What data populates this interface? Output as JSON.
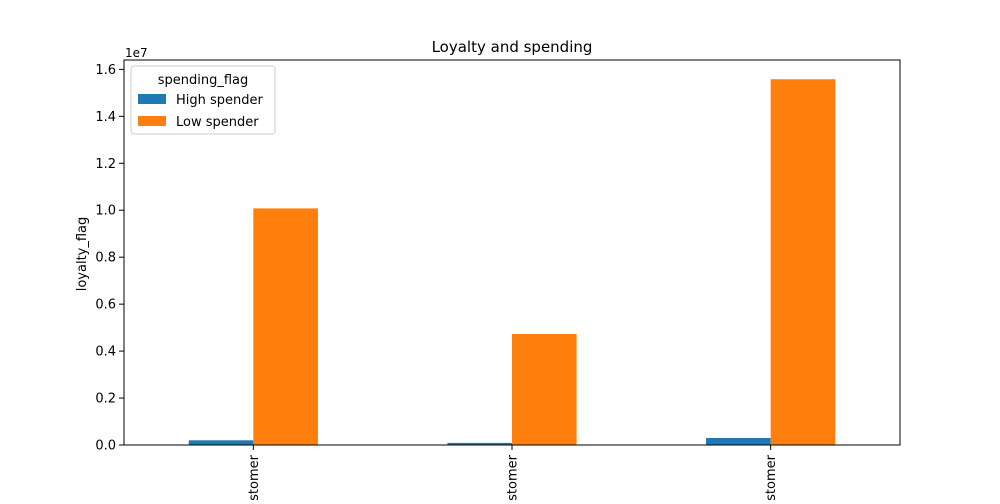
{
  "chart_data": {
    "type": "bar",
    "title": "Loyalty and spending",
    "xlabel": "",
    "ylabel": "loyalty_flag",
    "y_offset_text": "1e7",
    "y_scale": 10000000,
    "categories": [
      "Loyal customer",
      "New customer",
      "Regular customer"
    ],
    "category_labels_visible": [
      "stomer",
      "stomer",
      "stomer"
    ],
    "yticks": [
      "0.0",
      "0.2",
      "0.4",
      "0.6",
      "0.8",
      "1.0",
      "1.2",
      "1.4",
      "1.6"
    ],
    "ylim": [
      0,
      16400000
    ],
    "grid": false,
    "legend": {
      "title": "spending_flag",
      "placement": "top-left"
    },
    "series": [
      {
        "name": "High spender",
        "color": "#1f77b4",
        "values": [
          200000,
          90000,
          300000
        ]
      },
      {
        "name": "Low spender",
        "color": "#ff7f0e",
        "values": [
          10080000,
          4730000,
          15580000
        ]
      }
    ]
  }
}
